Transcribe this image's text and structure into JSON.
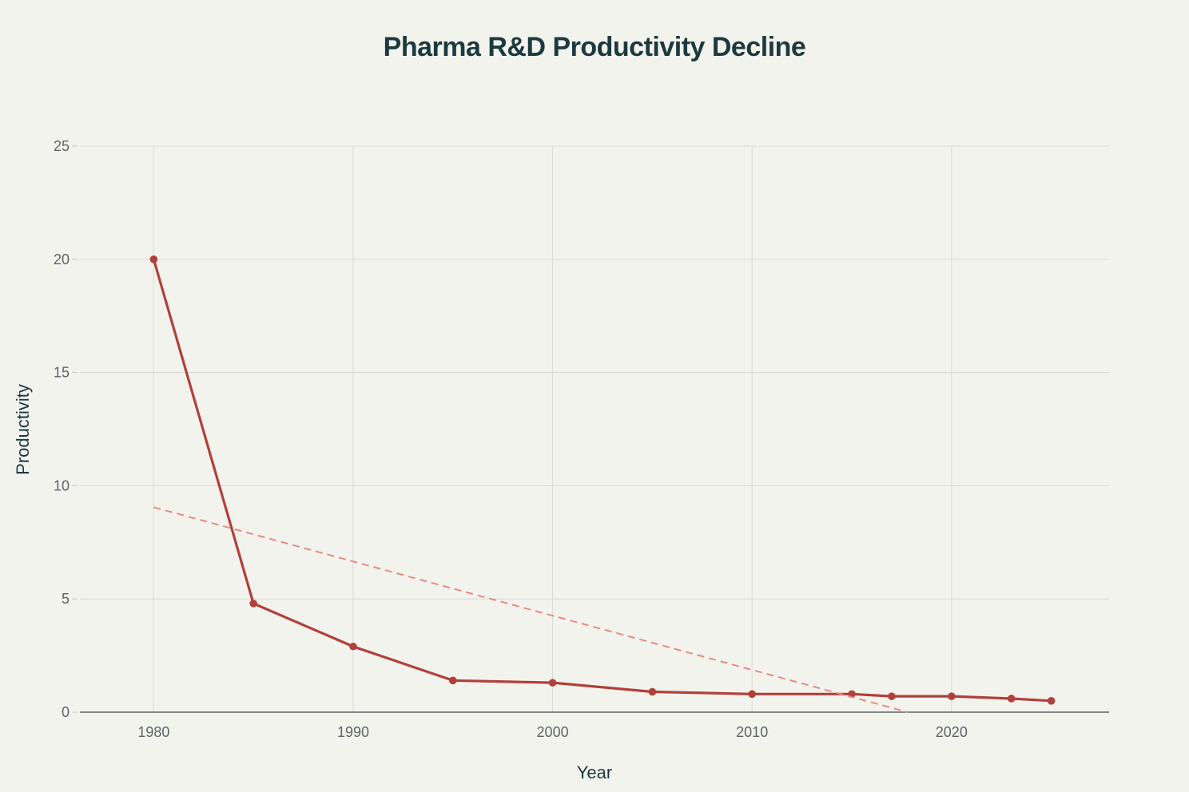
{
  "chart_data": {
    "type": "line",
    "title": "Pharma R&D Productivity Decline",
    "xlabel": "Year",
    "ylabel": "Productivity",
    "xlim": [
      1976.3,
      2027.9
    ],
    "ylim": [
      0,
      25
    ],
    "x_ticks": [
      1980,
      1990,
      2000,
      2010,
      2020
    ],
    "y_ticks": [
      0,
      5,
      10,
      15,
      20,
      25
    ],
    "grid": true,
    "series": [
      {
        "name": "Productivity",
        "color": "#b2403a",
        "x": [
          1980,
          1985,
          1990,
          1995,
          2000,
          2005,
          2010,
          2015,
          2017,
          2020,
          2023,
          2025
        ],
        "values": [
          20,
          4.8,
          2.9,
          1.4,
          1.3,
          0.9,
          0.8,
          0.8,
          0.7,
          0.7,
          0.6,
          0.5
        ]
      },
      {
        "name": "Trend",
        "style": "dashed",
        "color": "#e58c80",
        "x": [
          1980,
          2017.8
        ],
        "values": [
          9.05,
          0
        ]
      }
    ]
  }
}
